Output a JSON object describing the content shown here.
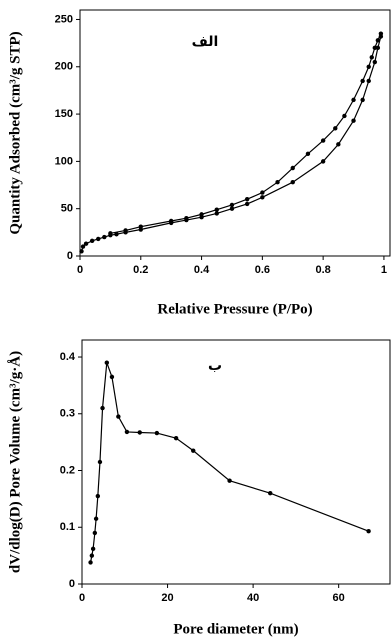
{
  "chart_data": [
    {
      "type": "line",
      "annotation": "الف",
      "x_label": "Relative Pressure (P/Po)",
      "y_label": "Quantity Adsorbed (cm³/g STP)",
      "xlim": [
        0,
        1.02
      ],
      "ylim": [
        0,
        260
      ],
      "xticks": [
        0,
        0.2,
        0.4,
        0.6,
        0.8,
        1
      ],
      "yticks": [
        0,
        50,
        100,
        150,
        200,
        250
      ],
      "series": [
        {
          "color": "#000000",
          "x": [
            0.005,
            0.01,
            0.02,
            0.04,
            0.06,
            0.08,
            0.1,
            0.12,
            0.15,
            0.2,
            0.3,
            0.35,
            0.4,
            0.45,
            0.5,
            0.55,
            0.6,
            0.7,
            0.8,
            0.85,
            0.9,
            0.93,
            0.95,
            0.97,
            0.98,
            0.99
          ],
          "values": [
            5,
            10,
            13,
            16,
            18,
            20,
            22,
            23,
            25,
            28,
            35,
            38,
            41,
            45,
            50,
            55,
            62,
            78,
            100,
            118,
            143,
            165,
            185,
            205,
            220,
            232
          ]
        },
        {
          "color": "#000000",
          "x": [
            0.99,
            0.98,
            0.97,
            0.96,
            0.95,
            0.93,
            0.9,
            0.87,
            0.84,
            0.8,
            0.75,
            0.7,
            0.65,
            0.6,
            0.55,
            0.5,
            0.45,
            0.4,
            0.35,
            0.3,
            0.2,
            0.15,
            0.1
          ],
          "values": [
            235,
            228,
            220,
            210,
            200,
            185,
            165,
            148,
            135,
            122,
            108,
            93,
            78,
            67,
            60,
            54,
            49,
            44,
            40,
            37,
            31,
            27,
            24
          ]
        }
      ]
    },
    {
      "type": "line",
      "annotation": "ب",
      "x_label": "Pore diameter (nm)",
      "y_label": "dV/dlog(D) Pore Volume (cm³/g·Å)",
      "xlim": [
        0,
        72
      ],
      "ylim": [
        0,
        0.43
      ],
      "xticks": [
        0,
        20,
        40,
        60
      ],
      "yticks": [
        0,
        0.1,
        0.2,
        0.3,
        0.4
      ],
      "series": [
        {
          "color": "#000000",
          "x": [
            2.0,
            2.3,
            2.6,
            3,
            3.3,
            3.7,
            4.2,
            4.8,
            5.8,
            7,
            8.5,
            10.5,
            13.5,
            17.5,
            22,
            26,
            34.5,
            44,
            67
          ],
          "values": [
            0.038,
            0.05,
            0.062,
            0.09,
            0.115,
            0.155,
            0.215,
            0.31,
            0.39,
            0.365,
            0.295,
            0.268,
            0.267,
            0.266,
            0.257,
            0.235,
            0.182,
            0.16,
            0.093
          ]
        }
      ]
    }
  ]
}
